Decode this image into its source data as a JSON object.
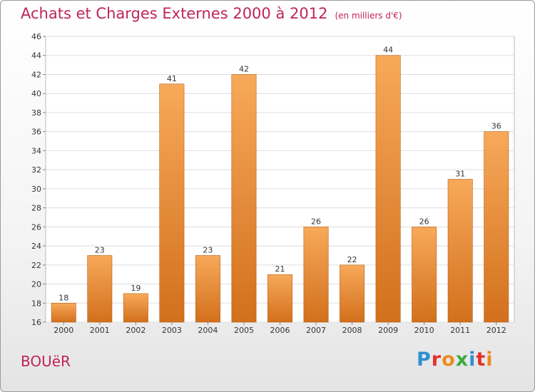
{
  "title": "Achats et Charges Externes 2000 à 2012",
  "title_unit": "(en milliers d'€)",
  "place": "BOUëR",
  "logo": {
    "text": "Proxiti",
    "letter_colors": [
      "#2f8fd0",
      "#e2312e",
      "#ef8a1e",
      "#3bab3e",
      "#2f8fd0",
      "#e2312e",
      "#ef8a1e"
    ]
  },
  "colors": {
    "bar_light": "#f7a95a",
    "bar_dark": "#d2701c",
    "title": "#c0245a"
  },
  "chart_data": {
    "type": "bar",
    "title": "Achats et Charges Externes 2000 à 2012",
    "categories": [
      "2000",
      "2001",
      "2002",
      "2003",
      "2004",
      "2005",
      "2006",
      "2007",
      "2008",
      "2009",
      "2010",
      "2011",
      "2012"
    ],
    "values": [
      18,
      23,
      19,
      41,
      23,
      42,
      21,
      26,
      22,
      44,
      26,
      31,
      36
    ],
    "ylim": [
      16,
      46
    ],
    "yticks": [
      16,
      18,
      20,
      22,
      24,
      26,
      28,
      30,
      32,
      34,
      36,
      38,
      40,
      42,
      44,
      46
    ],
    "grid": true,
    "data_labels": true
  }
}
